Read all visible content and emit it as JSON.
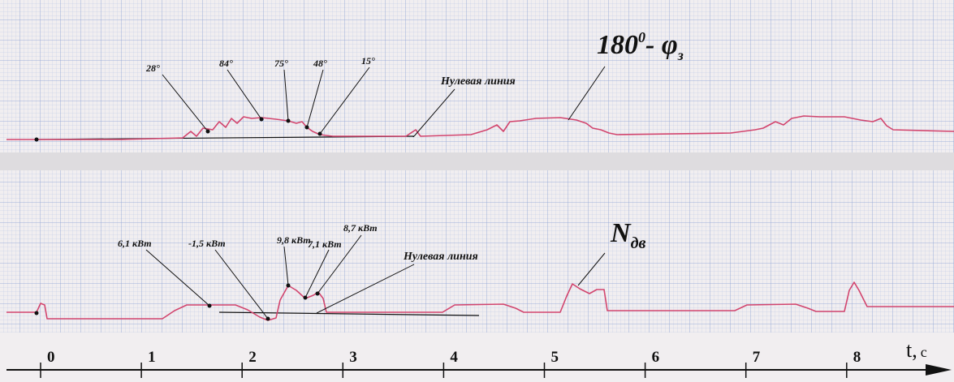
{
  "upper": {
    "title": {
      "base": "180",
      "sup": "0",
      "mid": "- φ",
      "sub": "з"
    },
    "angle_labels": [
      "28°",
      "84°",
      "75°",
      "48°",
      "15°"
    ],
    "zero_line_label": "Нулевая линия"
  },
  "lower": {
    "title": {
      "base": "N",
      "sub": "дв"
    },
    "power_labels": [
      "6,1 кВт",
      "-1,5 кВт",
      "9,8 кВт",
      "7,1 кВт",
      "8,7 кВт"
    ],
    "zero_line_label": "Нулевая линия"
  },
  "time_axis": {
    "label": "t,",
    "unit": "с",
    "ticks": [
      0,
      1,
      2,
      3,
      4,
      5,
      6,
      7,
      8
    ]
  }
}
